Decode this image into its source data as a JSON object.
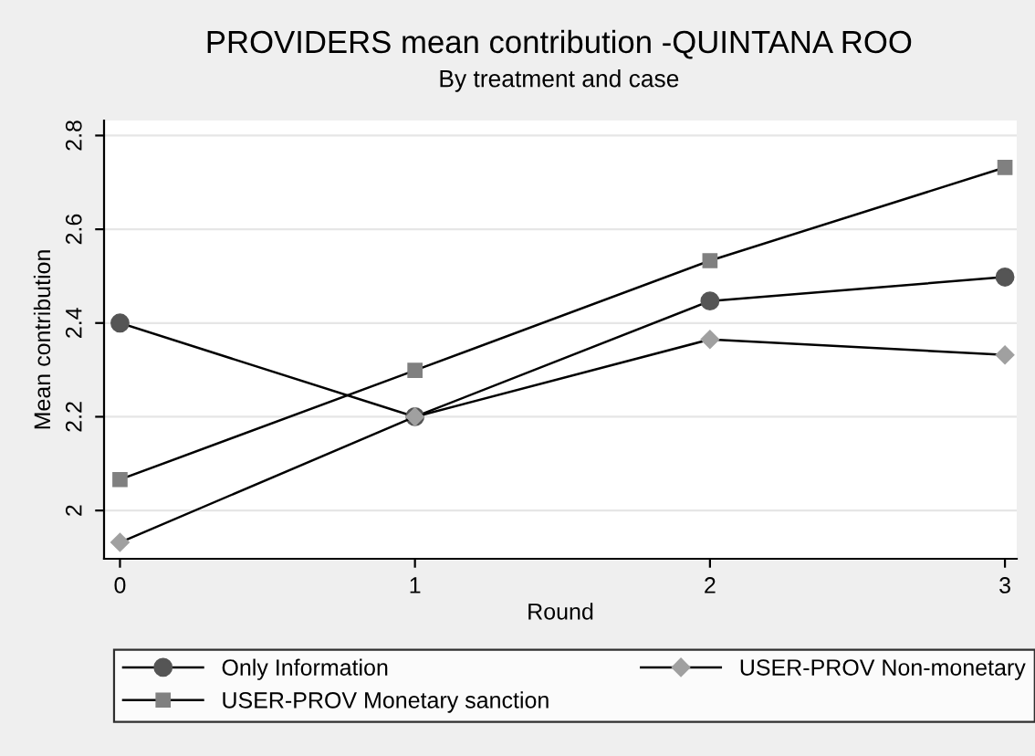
{
  "chart_data": {
    "type": "line",
    "title": "PROVIDERS mean contribution -QUINTANA ROO",
    "subtitle": "By treatment and case",
    "xlabel": "Round",
    "ylabel": "Mean contribution",
    "x": [
      0,
      1,
      2,
      3
    ],
    "xlim": [
      -0.054,
      3.04
    ],
    "xticks": [
      0,
      1,
      2,
      3
    ],
    "ylim": [
      1.897,
      2.832
    ],
    "yticks": [
      2,
      2.2,
      2.4,
      2.6,
      2.8
    ],
    "grid": "y",
    "legend": "bottom",
    "series": [
      {
        "name": "Only Information",
        "color": "#555555",
        "marker": "circle",
        "values": [
          2.4,
          2.2,
          2.447,
          2.498
        ]
      },
      {
        "name": "USER-PROV Non-monetary",
        "color": "#a0a0a0",
        "marker": "diamond",
        "values": [
          1.932,
          2.2,
          2.365,
          2.332
        ]
      },
      {
        "name": "USER-PROV Monetary sanction",
        "color": "#808080",
        "marker": "square",
        "values": [
          2.066,
          2.299,
          2.533,
          2.732
        ]
      }
    ]
  }
}
